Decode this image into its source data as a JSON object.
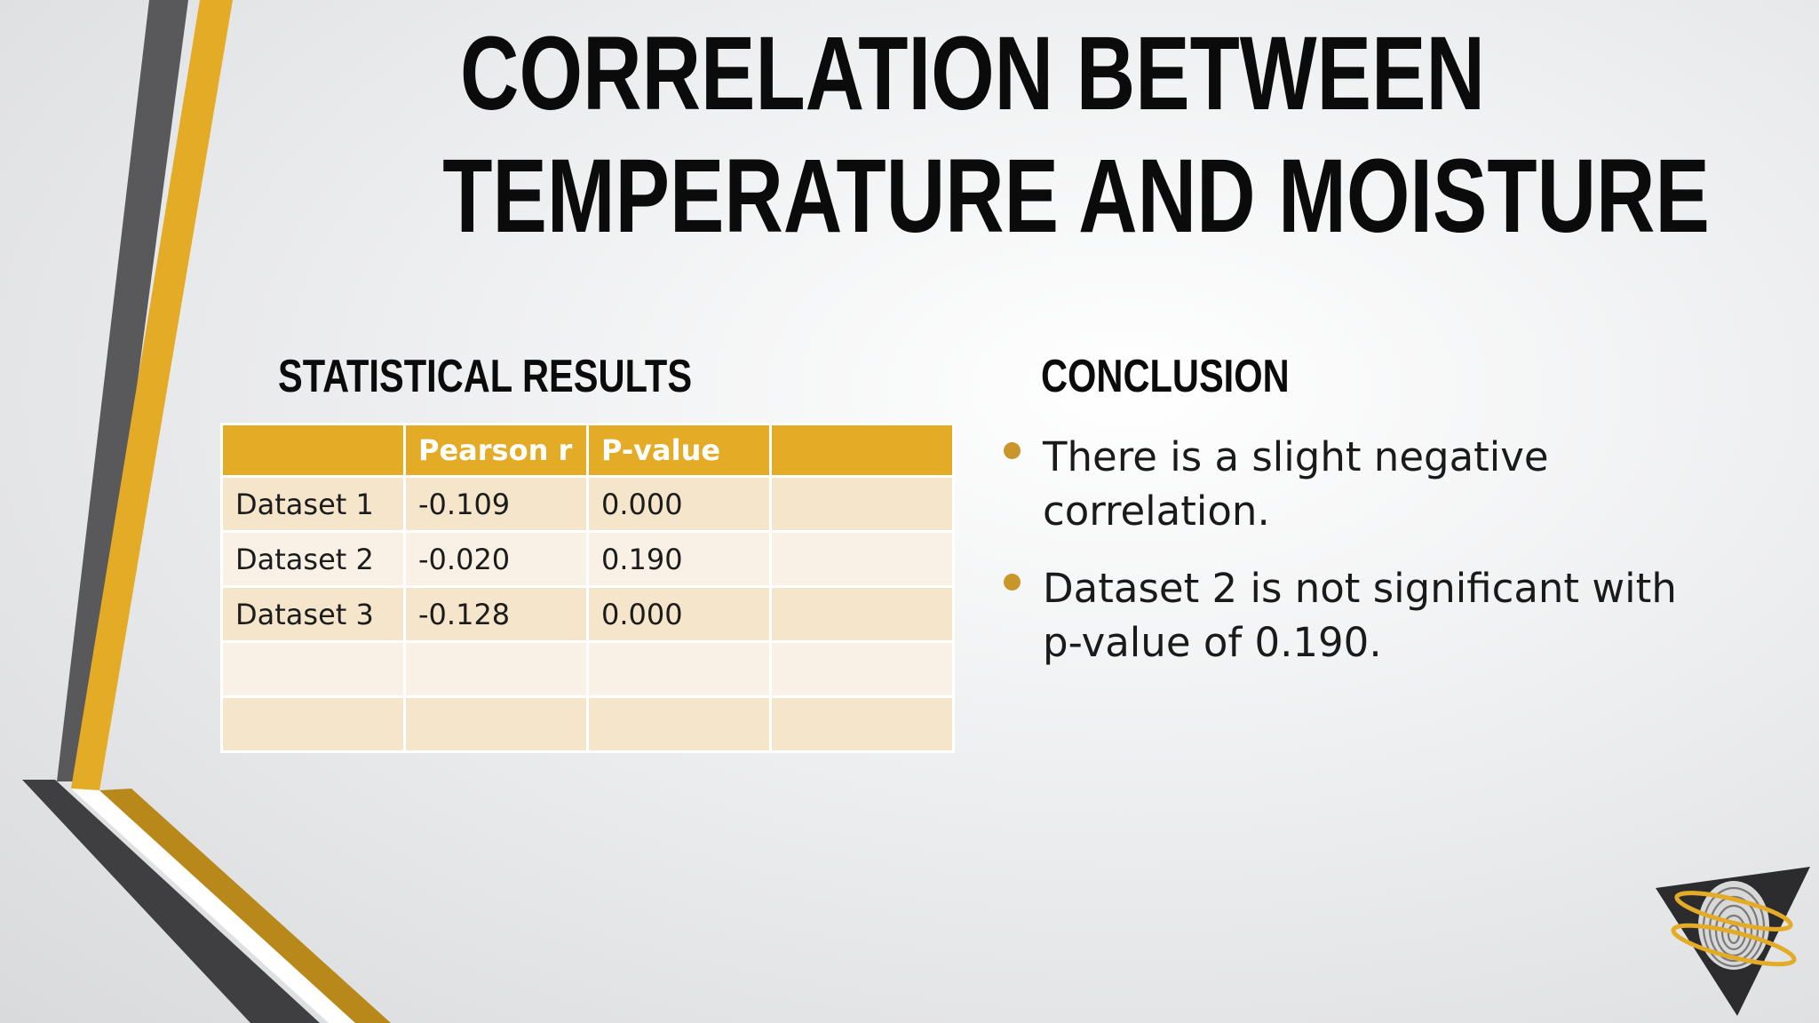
{
  "title": {
    "line1": "CORRELATION BETWEEN",
    "line2": "TEMPERATURE AND MOISTURE"
  },
  "statistics": {
    "heading": "STATISTICAL RESULTS",
    "columns": [
      "",
      "Pearson r",
      "P-value",
      ""
    ],
    "rows": [
      [
        "Dataset 1",
        "-0.109",
        "0.000",
        ""
      ],
      [
        "Dataset 2",
        "-0.020",
        "0.190",
        ""
      ],
      [
        "Dataset 3",
        "-0.128",
        "0.000",
        ""
      ],
      [
        "",
        "",
        "",
        ""
      ],
      [
        "",
        "",
        "",
        ""
      ]
    ]
  },
  "conclusion": {
    "heading": "CONCLUSION",
    "bullets": [
      "There is a slight negative correlation.",
      "Dataset 2 is not significant with p-value of 0.190."
    ]
  },
  "colors": {
    "accent_gold": "#e4ab26",
    "dark_gray": "#4a4a4c",
    "row_odd": "#f4e5cb",
    "row_even": "#f9f1e6",
    "bullet": "#c8962a"
  },
  "icons": {
    "logo": "fingerprint-triangle-logo"
  }
}
